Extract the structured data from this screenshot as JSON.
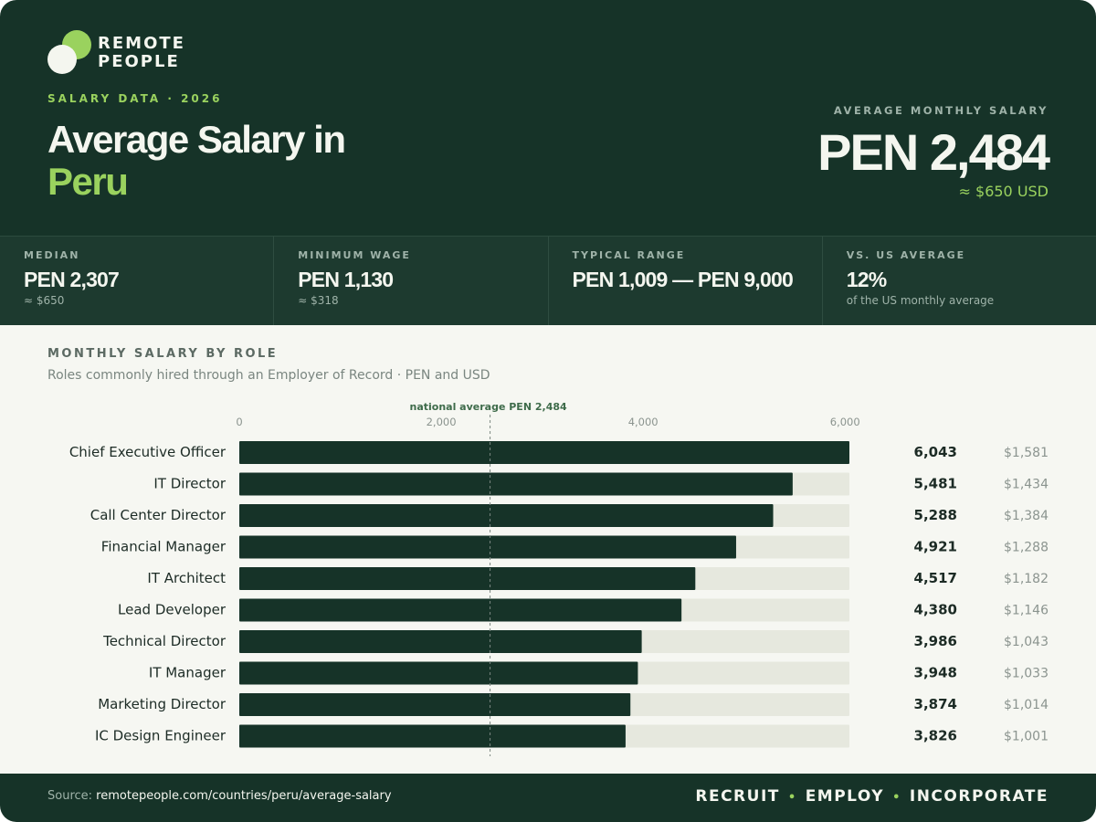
{
  "brand": {
    "logo_line1": "REMOTE",
    "logo_line2": "PEOPLE",
    "accent": "#9ad25e",
    "dark": "#163328"
  },
  "header": {
    "eyebrow": "SALARY DATA · 2026",
    "title_line1": "Average Salary in",
    "title_line2": "Peru",
    "avg_label": "AVERAGE MONTHLY SALARY",
    "avg_value": "PEN 2,484",
    "avg_usd": "≈ $650 USD"
  },
  "stats": [
    {
      "label": "MEDIAN",
      "value": "PEN 2,307",
      "sub": "≈ $650"
    },
    {
      "label": "MINIMUM WAGE",
      "value": "PEN 1,130",
      "sub": "≈ $318"
    },
    {
      "label": "TYPICAL RANGE",
      "value": "PEN 1,009 — PEN 9,000",
      "sub": ""
    },
    {
      "label": "VS. US AVERAGE",
      "value": "12%",
      "sub": "of the US monthly average"
    }
  ],
  "section": {
    "title": "MONTHLY SALARY BY ROLE",
    "subtitle": "Roles commonly hired through an Employer of Record · PEN and USD"
  },
  "chart_data": {
    "type": "bar",
    "orientation": "horizontal",
    "categories": [
      "Chief Executive Officer",
      "IT Director",
      "Call Center Director",
      "Financial Manager",
      "IT Architect",
      "Lead Developer",
      "Technical Director",
      "IT Manager",
      "Marketing Director",
      "IC Design Engineer"
    ],
    "values": [
      6043,
      5481,
      5288,
      4921,
      4517,
      4380,
      3986,
      3948,
      3874,
      3826
    ],
    "value_labels": [
      "6,043",
      "5,481",
      "5,288",
      "4,921",
      "4,517",
      "4,380",
      "3,986",
      "3,948",
      "3,874",
      "3,826"
    ],
    "usd_labels": [
      "$1,581",
      "$1,434",
      "$1,384",
      "$1,288",
      "$1,182",
      "$1,146",
      "$1,043",
      "$1,033",
      "$1,014",
      "$1,001"
    ],
    "xticks": [
      0,
      2000,
      4000,
      6000
    ],
    "xtick_labels": [
      "0",
      "2,000",
      "4,000",
      "6,000"
    ],
    "xlim": [
      0,
      6043
    ],
    "reference_line": {
      "value": 2484,
      "label": "national average PEN 2,484"
    },
    "bar_color": "#163328",
    "track_color": "#e6e8de",
    "grid": false
  },
  "footer": {
    "source_prefix": "Source: ",
    "source_url": "remotepeople.com/countries/peru/average-salary",
    "tag1": "RECRUIT",
    "tag2": "EMPLOY",
    "tag3": "INCORPORATE",
    "separator": "•"
  }
}
